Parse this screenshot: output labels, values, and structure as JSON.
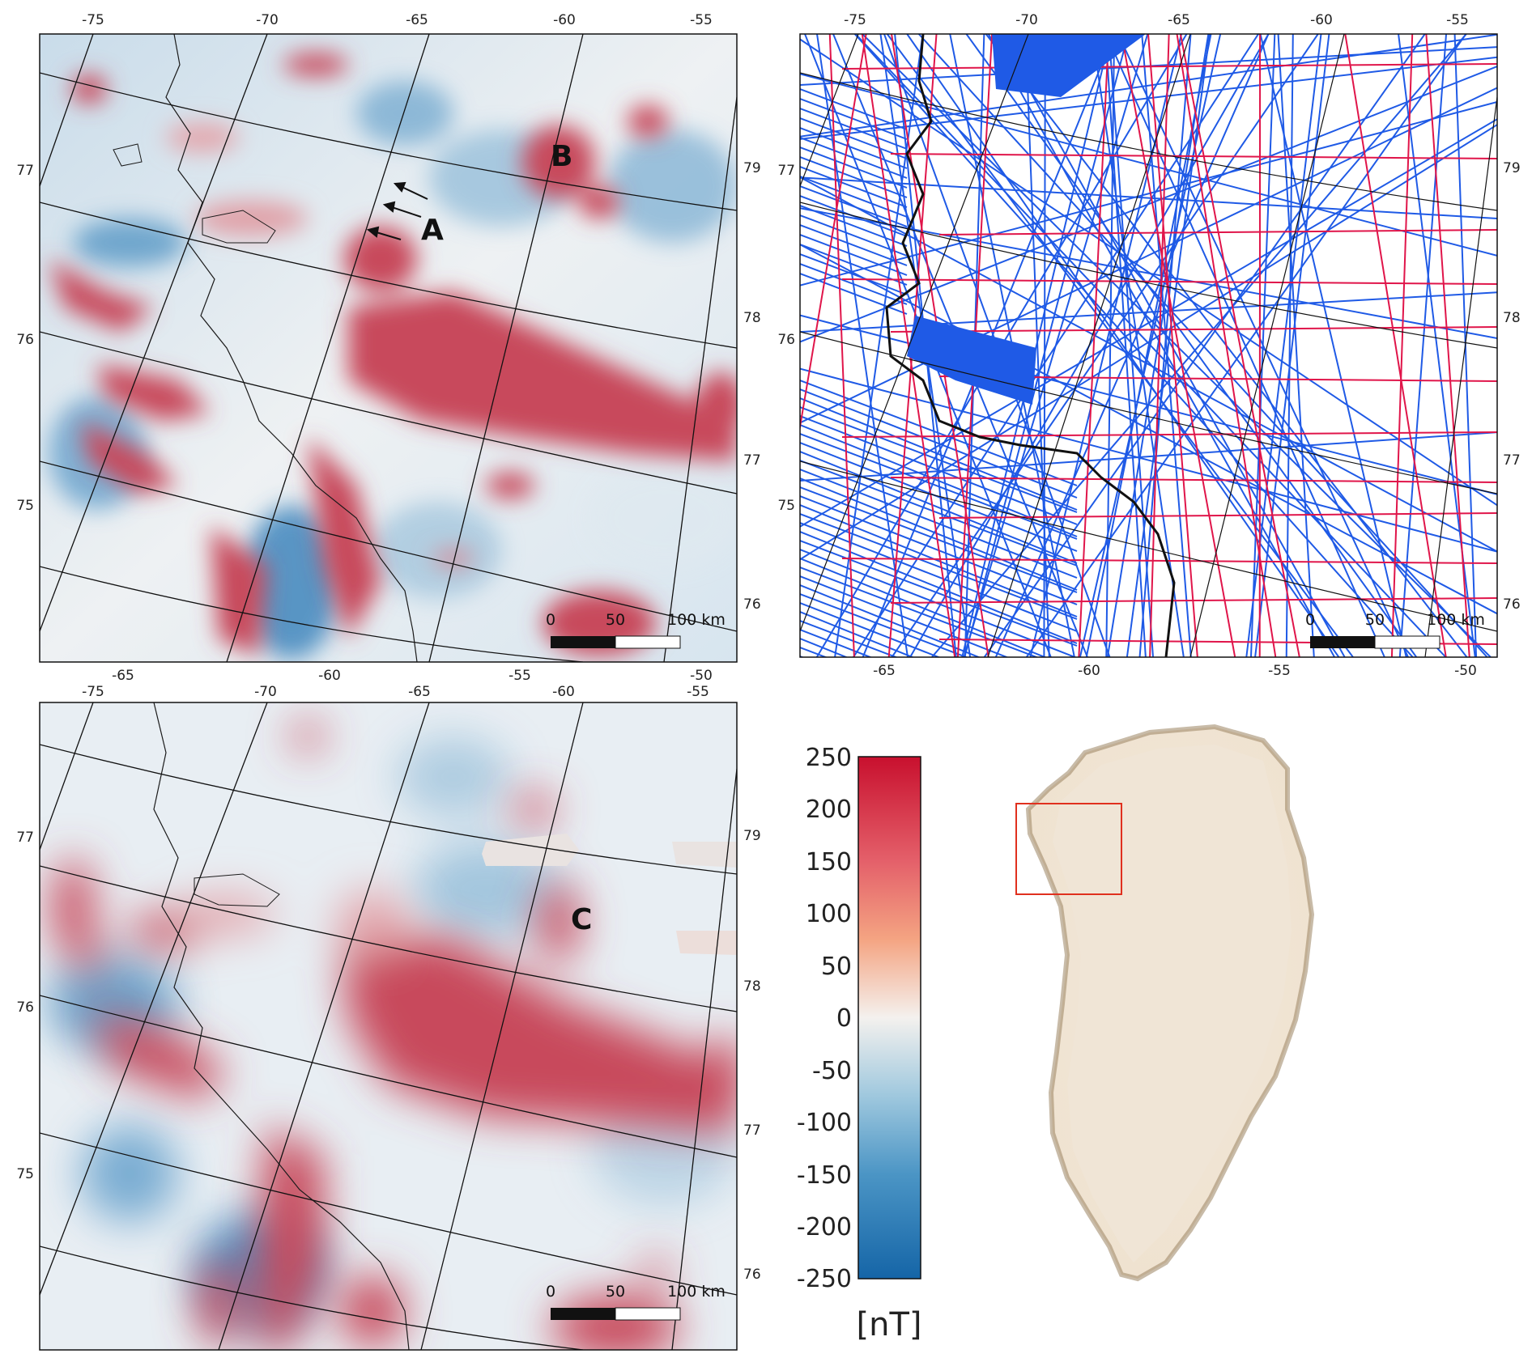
{
  "panels": {
    "top_left": {
      "top_ticks": [
        "-75",
        "-70",
        "-65",
        "-60",
        "-55"
      ],
      "bottom_ticks": [
        "-65",
        "-60",
        "-55",
        "-50"
      ],
      "left_ticks": [
        "77",
        "76",
        "75"
      ],
      "right_ticks": [
        "79",
        "78",
        "77",
        "76"
      ],
      "letter_a": "A",
      "letter_b": "B",
      "scale": {
        "zero": "0",
        "mid": "50",
        "end": "100 km"
      }
    },
    "top_right": {
      "top_ticks": [
        "-75",
        "-70",
        "-65",
        "-60",
        "-55"
      ],
      "bottom_ticks": [
        "-65",
        "-60",
        "-55",
        "-50"
      ],
      "left_ticks": [
        "77",
        "76",
        "75"
      ],
      "right_ticks": [
        "79",
        "78",
        "77",
        "76"
      ],
      "scale": {
        "zero": "0",
        "mid": "50",
        "end": "100 km"
      },
      "line_colors": {
        "set_1": "#1f5ae6",
        "set_2": "#e0154a"
      }
    },
    "bottom_left": {
      "top_ticks": [
        "-75",
        "-70",
        "-65",
        "-60",
        "-55"
      ],
      "bottom_ticks": [
        "-65",
        "-60",
        "-55",
        "-50"
      ],
      "left_ticks": [
        "77",
        "76",
        "75"
      ],
      "right_ticks": [
        "79",
        "78",
        "77",
        "76"
      ],
      "letter_c": "C",
      "scale": {
        "zero": "0",
        "mid": "50",
        "end": "100 km"
      }
    }
  },
  "colorbar": {
    "ticks": [
      "250",
      "200",
      "150",
      "100",
      "50",
      "0",
      "-50",
      "-100",
      "-150",
      "-200",
      "-250"
    ],
    "unit": "[nT]",
    "range": [
      -250,
      250
    ],
    "colors": {
      "max": "#c8102e",
      "mid": "#f2ebe6",
      "min": "#1f6fab"
    }
  },
  "overview": {
    "label": "Greenland",
    "highlight_color": "#e0301e"
  },
  "colors": {
    "positive": "#c8485c",
    "negative": "#5f9cc8",
    "neutral": "#eaeef1"
  }
}
